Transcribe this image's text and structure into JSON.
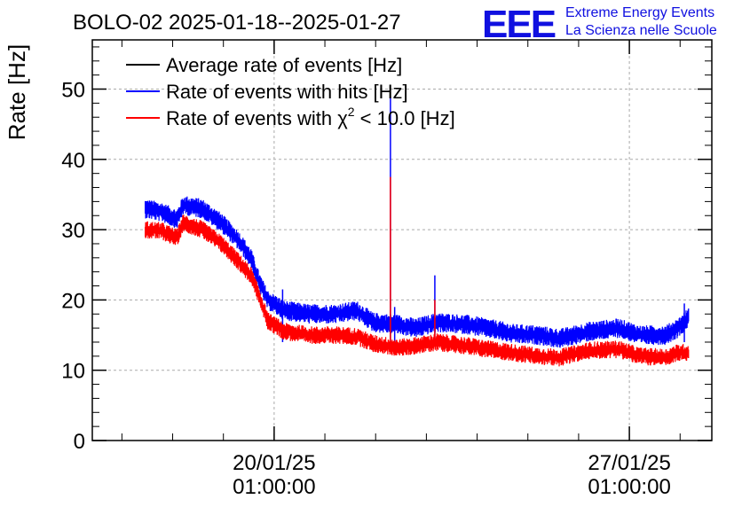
{
  "header": {
    "title": "BOLO-02 2025-01-18--2025-01-27",
    "logo_text": "EEE",
    "org_line1": "Extreme Energy Events",
    "org_line2": "La Scienza nelle Scuole",
    "logo_color": "#1010e0"
  },
  "chart_data": {
    "type": "line",
    "ylabel": "Rate [Hz]",
    "ylim": [
      0,
      57
    ],
    "yticks": [
      0,
      10,
      20,
      30,
      40,
      50
    ],
    "xlim": [
      "2025-01-16T11:00:00",
      "2025-01-28T16:00:00"
    ],
    "xticks": [
      {
        "date": "2025-01-20T01:00:00",
        "label_line1": "20/01/25",
        "label_line2": "01:00:00"
      },
      {
        "date": "2025-01-27T01:00:00",
        "label_line1": "27/01/25",
        "label_line2": "01:00:00"
      }
    ],
    "grid": true,
    "legend_position": "top-left",
    "series": [
      {
        "name": "Average rate of events [Hz]",
        "color": "#000000",
        "points": []
      },
      {
        "name": "Rate of events with hits [Hz]",
        "color": "#0000ff",
        "points": [
          [
            "2025-01-17T12:00:00",
            33.0
          ],
          [
            "2025-01-17T20:00:00",
            32.5
          ],
          [
            "2025-01-18T03:00:00",
            31.5
          ],
          [
            "2025-01-18T06:00:00",
            33.5
          ],
          [
            "2025-01-18T15:00:00",
            33.0
          ],
          [
            "2025-01-19T00:00:00",
            31.0
          ],
          [
            "2025-01-19T08:00:00",
            28.5
          ],
          [
            "2025-01-19T14:00:00",
            26.0
          ],
          [
            "2025-01-19T18:00:00",
            22.5
          ],
          [
            "2025-01-19T22:00:00",
            20.0
          ],
          [
            "2025-01-20T06:00:00",
            18.5
          ],
          [
            "2025-01-20T18:00:00",
            18.0
          ],
          [
            "2025-01-21T06:00:00",
            18.0
          ],
          [
            "2025-01-21T16:00:00",
            18.5
          ],
          [
            "2025-01-22T00:00:00",
            16.8
          ],
          [
            "2025-01-22T12:00:00",
            16.5
          ],
          [
            "2025-01-22T20:00:00",
            16.0
          ],
          [
            "2025-01-23T06:00:00",
            16.8
          ],
          [
            "2025-01-23T20:00:00",
            16.5
          ],
          [
            "2025-01-24T06:00:00",
            16.0
          ],
          [
            "2025-01-24T18:00:00",
            15.2
          ],
          [
            "2025-01-25T06:00:00",
            15.0
          ],
          [
            "2025-01-25T16:00:00",
            14.5
          ],
          [
            "2025-01-26T06:00:00",
            15.5
          ],
          [
            "2025-01-26T20:00:00",
            16.0
          ],
          [
            "2025-01-27T06:00:00",
            15.0
          ],
          [
            "2025-01-27T18:00:00",
            15.0
          ],
          [
            "2025-01-28T00:00:00",
            16.0
          ],
          [
            "2025-01-28T05:00:00",
            17.5
          ]
        ],
        "spikes": [
          [
            "2025-01-20T05:00:00",
            21.5
          ],
          [
            "2025-01-22T08:00:00",
            49.0
          ],
          [
            "2025-01-22T10:00:00",
            19.0
          ],
          [
            "2025-01-23T05:00:00",
            23.5
          ],
          [
            "2025-01-28T03:00:00",
            19.5
          ]
        ]
      },
      {
        "name": "Rate of events with χ² < 10.0 [Hz]",
        "legend_main": "Rate of events with χ",
        "legend_sup": "2",
        "legend_tail": " < 10.0 [Hz]",
        "color": "#ff0000",
        "points": [
          [
            "2025-01-17T12:00:00",
            30.0
          ],
          [
            "2025-01-17T20:00:00",
            29.8
          ],
          [
            "2025-01-18T03:00:00",
            28.8
          ],
          [
            "2025-01-18T06:00:00",
            31.0
          ],
          [
            "2025-01-18T15:00:00",
            30.0
          ],
          [
            "2025-01-19T00:00:00",
            28.0
          ],
          [
            "2025-01-19T08:00:00",
            25.5
          ],
          [
            "2025-01-19T14:00:00",
            23.5
          ],
          [
            "2025-01-19T18:00:00",
            20.5
          ],
          [
            "2025-01-19T22:00:00",
            17.0
          ],
          [
            "2025-01-20T06:00:00",
            15.5
          ],
          [
            "2025-01-20T18:00:00",
            15.0
          ],
          [
            "2025-01-21T06:00:00",
            15.0
          ],
          [
            "2025-01-21T16:00:00",
            14.8
          ],
          [
            "2025-01-22T00:00:00",
            13.8
          ],
          [
            "2025-01-22T12:00:00",
            13.2
          ],
          [
            "2025-01-22T20:00:00",
            13.5
          ],
          [
            "2025-01-23T06:00:00",
            14.0
          ],
          [
            "2025-01-23T20:00:00",
            13.5
          ],
          [
            "2025-01-24T06:00:00",
            13.0
          ],
          [
            "2025-01-24T18:00:00",
            12.5
          ],
          [
            "2025-01-25T06:00:00",
            12.0
          ],
          [
            "2025-01-25T16:00:00",
            11.8
          ],
          [
            "2025-01-26T06:00:00",
            12.8
          ],
          [
            "2025-01-26T20:00:00",
            13.0
          ],
          [
            "2025-01-27T06:00:00",
            12.0
          ],
          [
            "2025-01-27T18:00:00",
            11.8
          ],
          [
            "2025-01-28T00:00:00",
            12.5
          ],
          [
            "2025-01-28T05:00:00",
            12.5
          ]
        ],
        "spikes": [
          [
            "2025-01-22T08:00:00",
            37.5
          ],
          [
            "2025-01-23T05:00:00",
            20.0
          ]
        ]
      }
    ]
  }
}
